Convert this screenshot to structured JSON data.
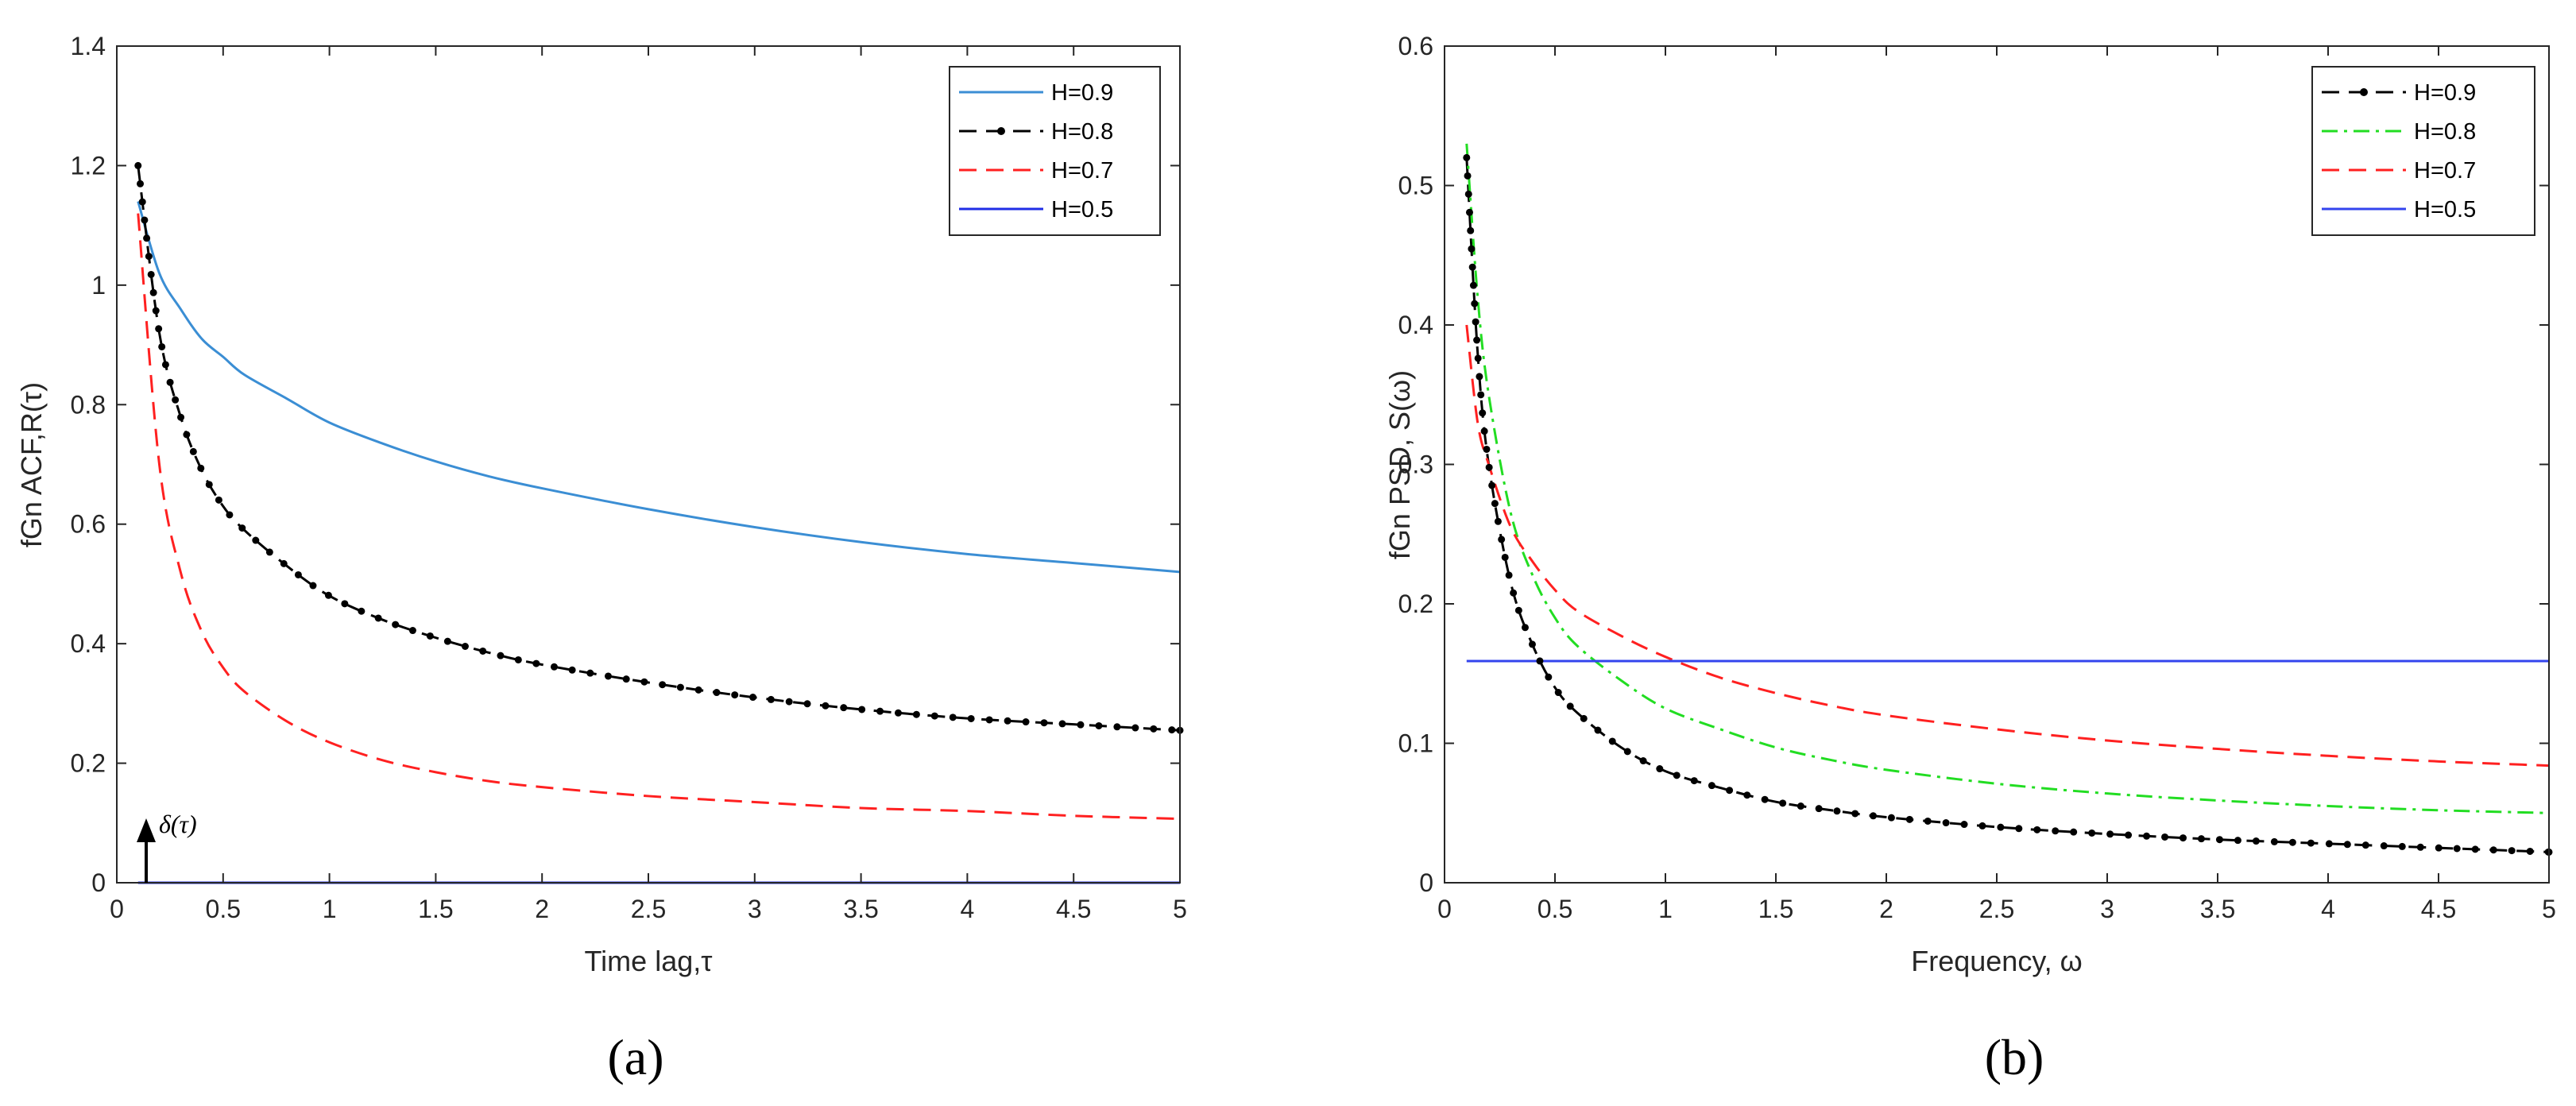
{
  "chart_data": [
    {
      "type": "line",
      "panel_label": "(a)",
      "xlabel": "Time lag,τ",
      "ylabel": "fGn ACF,R(τ)",
      "xlim": [
        0,
        5
      ],
      "ylim": [
        0,
        1.4
      ],
      "xticks": [
        "0",
        "0.5",
        "1",
        "1.5",
        "2",
        "2.5",
        "3",
        "3.5",
        "4",
        "4.5",
        "5"
      ],
      "yticks": [
        "0",
        "0.2",
        "0.4",
        "0.6",
        "0.8",
        "1",
        "1.2",
        "1.4"
      ],
      "legend_position": "top-right",
      "annotation": "δ(τ)",
      "x": [
        0.1,
        0.2,
        0.3,
        0.4,
        0.5,
        0.6,
        0.8,
        1.0,
        1.25,
        1.5,
        1.75,
        2.0,
        2.5,
        3.0,
        3.5,
        4.0,
        4.5,
        5.0
      ],
      "series": [
        {
          "name": "H=0.9",
          "color": "#3b8ed4",
          "style": "solid",
          "marker": false,
          "values": [
            1.14,
            1.02,
            0.96,
            0.91,
            0.88,
            0.85,
            0.81,
            0.77,
            0.735,
            0.705,
            0.68,
            0.66,
            0.625,
            0.595,
            0.57,
            0.55,
            0.535,
            0.52
          ]
        },
        {
          "name": "H=0.8",
          "color": "#000000",
          "style": "dash",
          "marker": true,
          "values": [
            1.2,
            0.92,
            0.78,
            0.69,
            0.63,
            0.59,
            0.53,
            0.48,
            0.44,
            0.41,
            0.385,
            0.365,
            0.335,
            0.31,
            0.29,
            0.275,
            0.265,
            0.255
          ]
        },
        {
          "name": "H=0.7",
          "color": "#ff2020",
          "style": "dash",
          "marker": false,
          "values": [
            1.12,
            0.7,
            0.52,
            0.42,
            0.36,
            0.32,
            0.27,
            0.235,
            0.205,
            0.185,
            0.17,
            0.16,
            0.145,
            0.135,
            0.125,
            0.12,
            0.112,
            0.107
          ]
        },
        {
          "name": "H=0.5",
          "color": "#1f2ee6",
          "style": "solid",
          "marker": false,
          "values": [
            0,
            0,
            0,
            0,
            0,
            0,
            0,
            0,
            0,
            0,
            0,
            0,
            0,
            0,
            0,
            0,
            0,
            0
          ]
        }
      ]
    },
    {
      "type": "line",
      "panel_label": "(b)",
      "xlabel": "Frequency, ω",
      "ylabel": "fGn PSD, S(ω)",
      "xlim": [
        0,
        5
      ],
      "ylim": [
        0,
        0.6
      ],
      "xticks": [
        "0",
        "0.5",
        "1",
        "1.5",
        "2",
        "2.5",
        "3",
        "3.5",
        "4",
        "4.5",
        "5"
      ],
      "yticks": [
        "0",
        "0.1",
        "0.2",
        "0.3",
        "0.4",
        "0.5",
        "0.6"
      ],
      "legend_position": "top-right",
      "x": [
        0.1,
        0.15,
        0.2,
        0.3,
        0.4,
        0.5,
        0.6,
        0.8,
        1.0,
        1.25,
        1.5,
        1.75,
        2.0,
        2.5,
        3.0,
        3.5,
        4.0,
        4.5,
        5.0
      ],
      "series": [
        {
          "name": "H=0.9",
          "color": "#000000",
          "style": "dash",
          "marker": true,
          "values": [
            0.52,
            0.38,
            0.3,
            0.215,
            0.17,
            0.14,
            0.122,
            0.097,
            0.08,
            0.068,
            0.058,
            0.052,
            0.047,
            0.04,
            0.035,
            0.031,
            0.028,
            0.025,
            0.022
          ]
        },
        {
          "name": "H=0.8",
          "color": "#22dd22",
          "style": "dashdot",
          "marker": false,
          "values": [
            0.53,
            0.42,
            0.35,
            0.265,
            0.22,
            0.19,
            0.17,
            0.145,
            0.125,
            0.11,
            0.097,
            0.088,
            0.081,
            0.071,
            0.064,
            0.059,
            0.055,
            0.052,
            0.05
          ]
        },
        {
          "name": "H=0.7",
          "color": "#ff2020",
          "style": "dash",
          "marker": false,
          "values": [
            0.4,
            0.33,
            0.3,
            0.255,
            0.23,
            0.21,
            0.195,
            0.177,
            0.162,
            0.147,
            0.136,
            0.127,
            0.12,
            0.11,
            0.102,
            0.096,
            0.091,
            0.087,
            0.084
          ]
        },
        {
          "name": "H=0.5",
          "color": "#3344ee",
          "style": "solid",
          "marker": false,
          "values": [
            0.159,
            0.159,
            0.159,
            0.159,
            0.159,
            0.159,
            0.159,
            0.159,
            0.159,
            0.159,
            0.159,
            0.159,
            0.159,
            0.159,
            0.159,
            0.159,
            0.159,
            0.159,
            0.159
          ]
        }
      ]
    }
  ]
}
